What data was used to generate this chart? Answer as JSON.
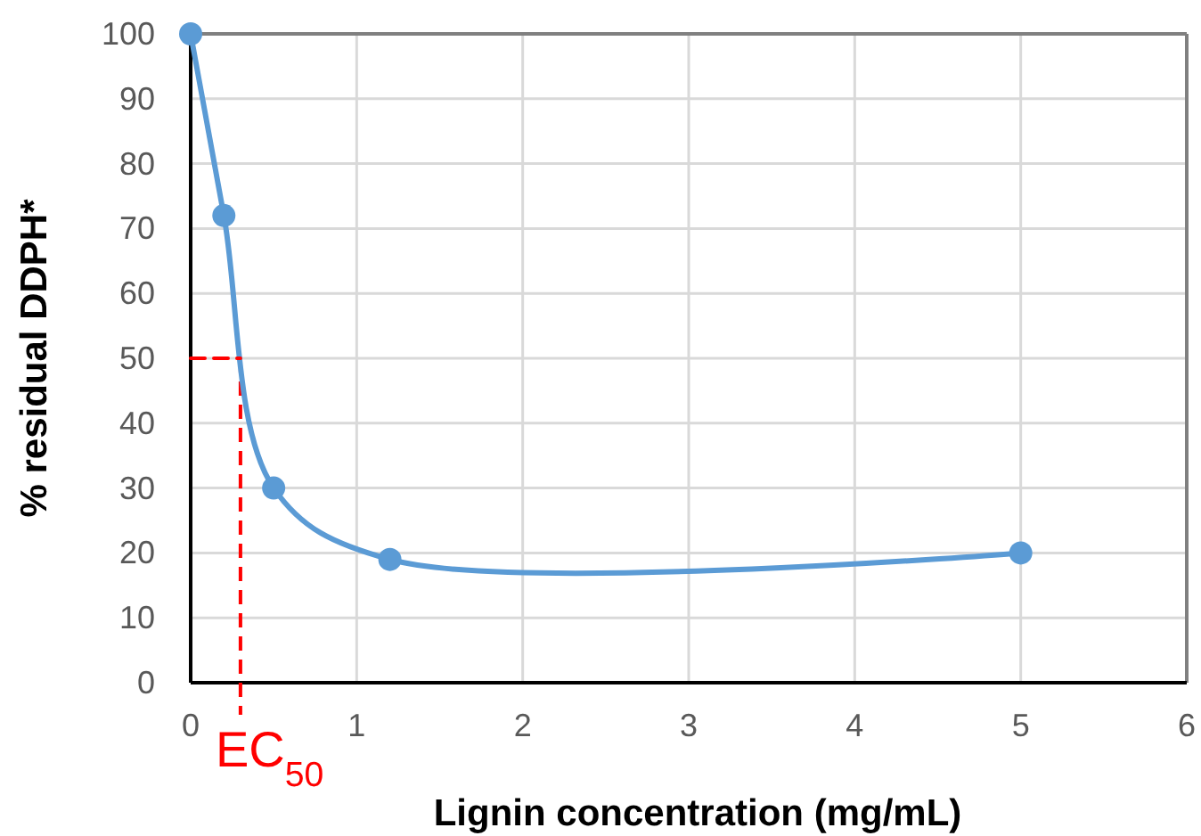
{
  "chart_data": {
    "type": "line",
    "xlabel": "Lignin concentration (mg/mL)",
    "ylabel": "% residual DDPH*",
    "x": [
      0,
      0.2,
      0.5,
      1.2,
      5
    ],
    "series": [
      {
        "color": "#5b9bd5",
        "values": [
          100,
          72,
          30,
          19,
          20
        ]
      },
      {
        "x": [
          0,
          0.3
        ],
        "values": [
          50,
          50
        ],
        "color": "#ff0000",
        "line_style": "dashed",
        "marker": "none"
      }
    ],
    "xlim": [
      0,
      6
    ],
    "xticks": [
      0,
      1,
      2,
      3,
      4,
      5,
      6
    ],
    "ylim": [
      0,
      100
    ],
    "yticks": [
      0,
      10,
      20,
      30,
      40,
      50,
      60,
      70,
      80,
      90,
      100
    ],
    "grid": true,
    "marker": "circle",
    "line_style": "solid",
    "ref_lines": [
      {
        "axis": "x",
        "value": 0.3,
        "label": "EC$_{50}$",
        "color": "#ff0000",
        "line_style": "dashed"
      }
    ]
  }
}
